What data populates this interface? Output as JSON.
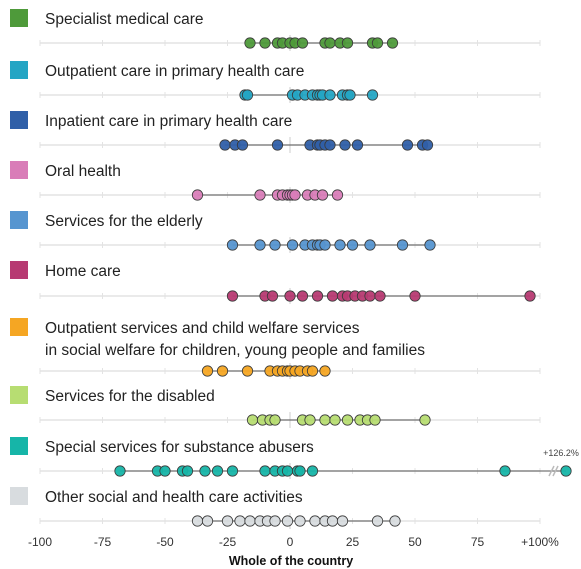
{
  "chart_data": {
    "type": "scatter",
    "xlabel": "Whole of the country",
    "xlim": [
      -100,
      100
    ],
    "x_ticks": [
      {
        "value": -100,
        "label": "-100"
      },
      {
        "value": -75,
        "label": "-75"
      },
      {
        "value": -50,
        "label": "-50"
      },
      {
        "value": -25,
        "label": "-25"
      },
      {
        "value": 0,
        "label": "0"
      },
      {
        "value": 25,
        "label": "25"
      },
      {
        "value": 50,
        "label": "50"
      },
      {
        "value": 75,
        "label": "75"
      },
      {
        "value": 100,
        "label": "+100%"
      }
    ],
    "grid": true,
    "outlier_annotation": "+126.2%",
    "series": [
      {
        "name": "Specialist medical care",
        "color": "#4e9a3a",
        "values": [
          -16,
          -10,
          -5,
          -3,
          0,
          2,
          5,
          14,
          16,
          20,
          23,
          33,
          35,
          41
        ]
      },
      {
        "name": "Outpatient care in primary health care",
        "color": "#24a5c4",
        "values": [
          -18,
          -17,
          1,
          3,
          6,
          9,
          11,
          12,
          13,
          16,
          21,
          23,
          24,
          33
        ]
      },
      {
        "name": "Inpatient care in primary health care",
        "color": "#2f5fa8",
        "values": [
          -26,
          -22,
          -19,
          -5,
          8,
          11,
          12,
          14,
          16,
          22,
          27,
          47,
          53,
          55
        ]
      },
      {
        "name": "Oral health",
        "color": "#d97db8",
        "values": [
          -37,
          -12,
          -5,
          -3,
          -1,
          0,
          1,
          2,
          7,
          10,
          13,
          19
        ]
      },
      {
        "name": "Services for the elderly",
        "color": "#5695d0",
        "values": [
          -23,
          -12,
          -6,
          1,
          6,
          9,
          11,
          12,
          14,
          20,
          25,
          32,
          45,
          56
        ]
      },
      {
        "name": "Home care",
        "color": "#b73a72",
        "values": [
          -23,
          -10,
          -7,
          0,
          5,
          11,
          17,
          21,
          23,
          26,
          29,
          32,
          36,
          50,
          96
        ]
      },
      {
        "name": "Outpatient services and child welfare services\nin social welfare for children, young people and families",
        "color": "#f5a623",
        "values": [
          -33,
          -27,
          -17,
          -8,
          -5,
          -3,
          -1,
          0,
          2,
          4,
          7,
          9,
          14
        ]
      },
      {
        "name": "Services for the disabled",
        "color": "#b7dd72",
        "values": [
          -15,
          -11,
          -8,
          -6,
          5,
          8,
          14,
          18,
          23,
          28,
          31,
          34,
          54
        ]
      },
      {
        "name": "Special services for substance abusers",
        "color": "#16b5a8",
        "values": [
          -68,
          -53,
          -50,
          -43,
          -41,
          -34,
          -29,
          -23,
          -10,
          -6,
          -3,
          -1,
          3,
          4,
          9,
          86,
          126.2
        ]
      },
      {
        "name": "Other social and health care activities",
        "color": "#d8dcdf",
        "values": [
          -37,
          -33,
          -25,
          -20,
          -16,
          -12,
          -9,
          -6,
          -1,
          4,
          10,
          14,
          17,
          21,
          35,
          42
        ]
      }
    ]
  }
}
